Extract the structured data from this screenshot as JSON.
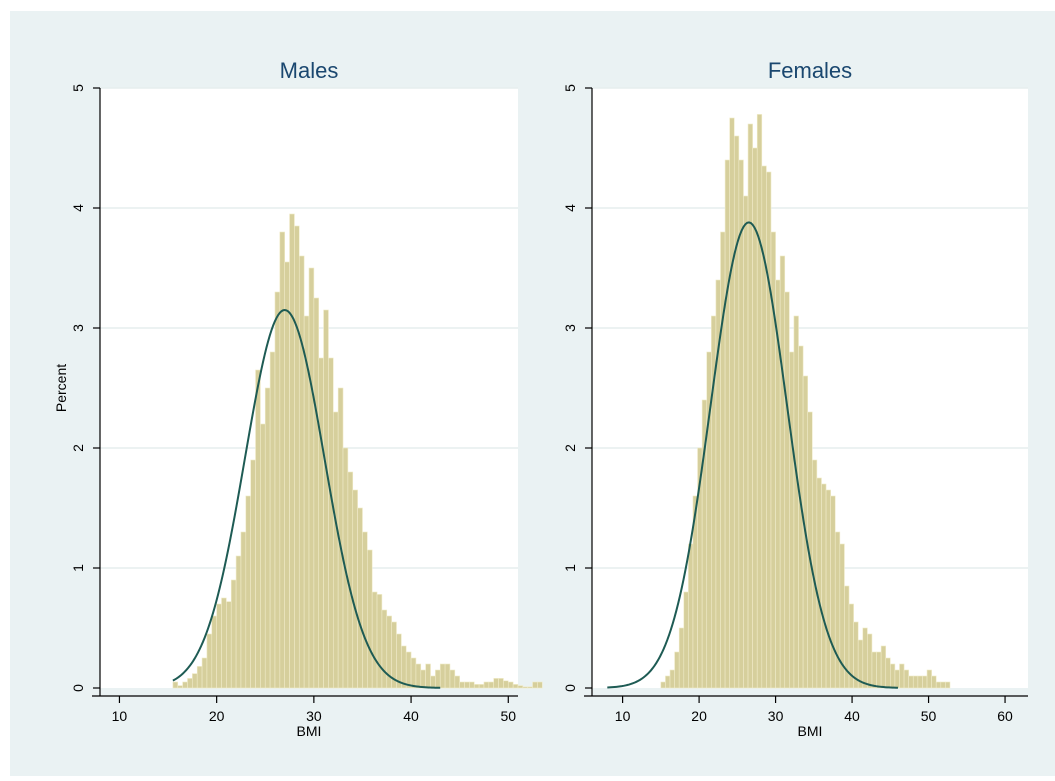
{
  "colors": {
    "outer_background": "#eaf2f3",
    "plot_background": "#ffffff",
    "bar_fill": "#d6cf9c",
    "bar_stroke": "#f0ebc9",
    "curve": "#1e5b54",
    "grid": "#e6eeee",
    "axis": "#000000",
    "title": "#1a476f"
  },
  "chart_data": [
    {
      "type": "bar",
      "title": "Males",
      "xlabel": "BMI",
      "ylabel": "Percent",
      "xlim": [
        8,
        51
      ],
      "ylim": [
        0,
        5
      ],
      "xticks": [
        10,
        20,
        30,
        40,
        50
      ],
      "yticks": [
        0,
        1,
        2,
        3,
        4,
        5
      ],
      "grid": true,
      "bin_start": 15.5,
      "bin_width": 0.5,
      "values": [
        0.05,
        0.02,
        0.05,
        0.08,
        0.12,
        0.18,
        0.25,
        0.45,
        0.6,
        0.7,
        0.75,
        0.72,
        0.9,
        1.1,
        1.3,
        1.6,
        1.9,
        2.65,
        2.2,
        2.5,
        2.8,
        3.3,
        3.8,
        3.55,
        3.95,
        3.85,
        3.6,
        3.1,
        3.5,
        3.25,
        2.75,
        3.15,
        2.75,
        2.3,
        2.5,
        2.0,
        1.8,
        1.65,
        1.5,
        1.3,
        1.15,
        0.8,
        0.78,
        0.65,
        0.6,
        0.55,
        0.45,
        0.35,
        0.3,
        0.25,
        0.2,
        0.15,
        0.2,
        0.1,
        0.15,
        0.2,
        0.2,
        0.15,
        0.1,
        0.05,
        0.05,
        0.05,
        0.03,
        0.03,
        0.05,
        0.05,
        0.08,
        0.08,
        0.06,
        0.05,
        0.03,
        0.02,
        0.01,
        0.01,
        0.05,
        0.05
      ],
      "curve": {
        "mean": 27.0,
        "sd": 4.1,
        "peak": 3.15,
        "from": 15.5,
        "to": 43
      }
    },
    {
      "type": "bar",
      "title": "Females",
      "xlabel": "BMI",
      "ylabel": "",
      "xlim": [
        6,
        63
      ],
      "ylim": [
        0,
        5
      ],
      "xticks": [
        10,
        20,
        30,
        40,
        50,
        60
      ],
      "yticks": [
        0,
        1,
        2,
        3,
        4,
        5
      ],
      "grid": true,
      "bin_start": 15.0,
      "bin_width": 0.6,
      "values": [
        0.05,
        0.1,
        0.15,
        0.3,
        0.5,
        0.8,
        1.2,
        1.6,
        2.0,
        2.4,
        2.8,
        3.1,
        3.4,
        3.8,
        4.4,
        4.75,
        4.6,
        4.4,
        4.1,
        4.7,
        4.5,
        4.78,
        4.35,
        4.3,
        3.8,
        3.4,
        3.6,
        3.3,
        2.8,
        3.1,
        2.85,
        2.6,
        2.3,
        1.9,
        1.75,
        1.7,
        1.65,
        1.6,
        1.3,
        1.2,
        0.85,
        0.7,
        0.55,
        0.4,
        0.5,
        0.45,
        0.3,
        0.3,
        0.35,
        0.25,
        0.2,
        0.15,
        0.2,
        0.15,
        0.1,
        0.1,
        0.1,
        0.1,
        0.15,
        0.1,
        0.05,
        0.05,
        0.05
      ],
      "curve": {
        "mean": 26.5,
        "sd": 5.0,
        "peak": 3.88,
        "from": 8,
        "to": 46
      }
    }
  ]
}
